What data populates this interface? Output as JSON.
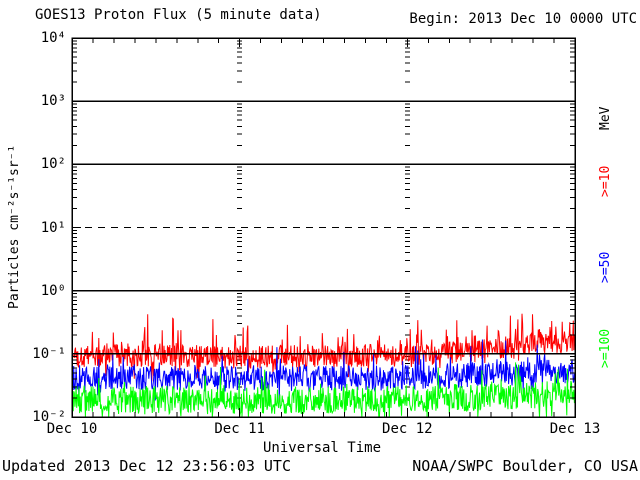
{
  "header": {
    "title": "GOES13 Proton Flux (5 minute data)",
    "begin": "Begin: 2013 Dec 10 0000 UTC"
  },
  "footer": {
    "updated": "Updated 2013 Dec 12 23:56:03 UTC",
    "source": "NOAA/SWPC Boulder, CO USA"
  },
  "legend": {
    "unit": {
      "label": "MeV",
      "color": "#000000"
    },
    "items": [
      {
        "label": ">=10",
        "color": "#ff0000"
      },
      {
        "label": ">=50",
        "color": "#0000ff"
      },
      {
        "label": ">=100",
        "color": "#00ff00"
      }
    ]
  },
  "chart_data": {
    "type": "line",
    "title": "GOES13 Proton Flux (5 minute data)",
    "subtitle": "Begin: 2013 Dec 10 0000 UTC",
    "xlabel": "Universal Time",
    "ylabel": "Particles cm⁻²s⁻¹sr⁻¹",
    "y_scale": "log10",
    "ylim": [
      0.01,
      10000
    ],
    "y_tick_labels": [
      "10⁴",
      "10³",
      "10²",
      "10¹",
      "10⁰",
      "10⁻¹",
      "10⁻²"
    ],
    "y_tick_exponents": [
      4,
      3,
      2,
      1,
      0,
      -1,
      -2
    ],
    "solid_hlines_exp": [
      3,
      2,
      0,
      -1
    ],
    "dashed_hlines_exp": [
      1
    ],
    "x_days": 3,
    "x_tick_labels": [
      "Dec 10",
      "Dec 11",
      "Dec 12",
      "Dec 13"
    ],
    "x_minor_tick_hours": 3,
    "grid": "decade lines horizontal; minor log dash columns at interior day boundaries",
    "legend_position": "right-rotated",
    "legend_title": "MeV",
    "series": [
      {
        "name": ">=10",
        "unit": "MeV",
        "color": "#ff0000",
        "points_per_day": 288,
        "description": "noisy background ~0.1 pfu, rising after Dec 12 ~06UT to ~0.15 with spikes to ~0.5",
        "median_log10_envelope": [
          [
            0,
            -1.05
          ],
          [
            0.5,
            -1.02
          ],
          [
            1.0,
            -1.06
          ],
          [
            1.5,
            -1.03
          ],
          [
            2.0,
            -1.02
          ],
          [
            2.3,
            -0.98
          ],
          [
            2.6,
            -0.9
          ],
          [
            2.85,
            -0.8
          ],
          [
            3.0,
            -0.82
          ]
        ],
        "noise_log10": 0.18,
        "spike_log10": 0.5,
        "spike_prob": 0.12,
        "dip_log10": 0.3,
        "dip_prob": 0.06
      },
      {
        "name": ">=50",
        "unit": "MeV",
        "color": "#0000ff",
        "points_per_day": 288,
        "description": "noisy background ~0.04 pfu, slight rise near end, spikes to ~0.15",
        "median_log10_envelope": [
          [
            0,
            -1.38
          ],
          [
            1.0,
            -1.4
          ],
          [
            2.0,
            -1.38
          ],
          [
            2.5,
            -1.32
          ],
          [
            3.0,
            -1.28
          ]
        ],
        "noise_log10": 0.2,
        "spike_log10": 0.45,
        "spike_prob": 0.08,
        "dip_log10": 0.25,
        "dip_prob": 0.05
      },
      {
        "name": ">=100",
        "unit": "MeV",
        "color": "#00ff00",
        "points_per_day": 288,
        "description": "noisy background ~0.02 pfu hugging 0.01-0.06 band",
        "median_log10_envelope": [
          [
            0,
            -1.72
          ],
          [
            1.0,
            -1.74
          ],
          [
            2.0,
            -1.72
          ],
          [
            2.5,
            -1.68
          ],
          [
            3.0,
            -1.62
          ]
        ],
        "noise_log10": 0.22,
        "spike_log10": 0.4,
        "spike_prob": 0.07,
        "dip_log10": 0.35,
        "dip_prob": 0.06
      }
    ]
  }
}
